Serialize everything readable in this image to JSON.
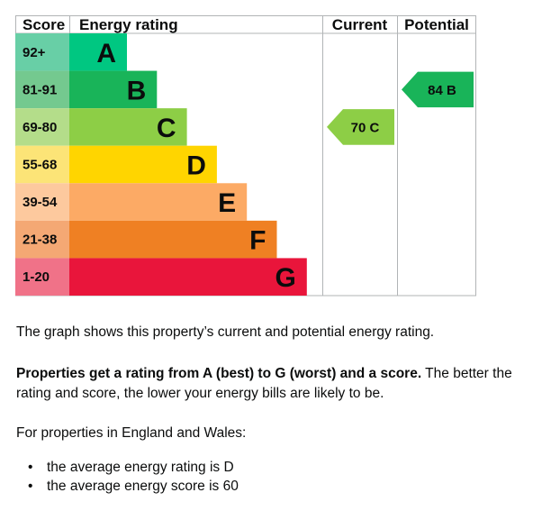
{
  "chart_data": {
    "type": "bar",
    "headers": {
      "score": "Score",
      "rating": "Energy rating",
      "current": "Current",
      "potential": "Potential"
    },
    "bands": [
      {
        "letter": "A",
        "range": "92+",
        "color": "#00c781",
        "score_bg": "#68cfa6"
      },
      {
        "letter": "B",
        "range": "81-91",
        "color": "#19b459",
        "score_bg": "#74c98f"
      },
      {
        "letter": "C",
        "range": "69-80",
        "color": "#8dce46",
        "score_bg": "#b4dd8a"
      },
      {
        "letter": "D",
        "range": "55-68",
        "color": "#ffd500",
        "score_bg": "#fce477"
      },
      {
        "letter": "E",
        "range": "39-54",
        "color": "#fcaa65",
        "score_bg": "#fdc99e"
      },
      {
        "letter": "F",
        "range": "21-38",
        "color": "#ef8023",
        "score_bg": "#f4a874"
      },
      {
        "letter": "G",
        "range": "1-20",
        "color": "#e9153b",
        "score_bg": "#f07288"
      }
    ],
    "current": {
      "score": 70,
      "band": "C",
      "label": "70 C",
      "color": "#8dce46"
    },
    "potential": {
      "score": 84,
      "band": "B",
      "label": "84 B",
      "color": "#19b459"
    }
  },
  "text": {
    "graph_description": "The graph shows this property’s current and potential energy rating.",
    "rating_bold": "Properties get a rating from A (best) to G (worst) and a score.",
    "rating_rest": " The better the rating and score, the lower your energy bills are likely to be.",
    "region": "For properties in England and Wales:",
    "average_items": [
      "the average energy rating is D",
      "the average energy score is 60"
    ]
  }
}
